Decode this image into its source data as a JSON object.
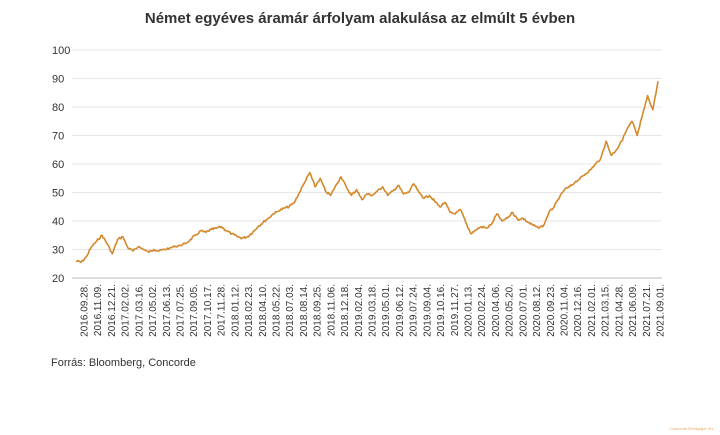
{
  "chart_data": {
    "type": "line",
    "title": "Német egyéves áramár árfolyam alakulása az elmúlt 5 évben",
    "xlabel": "",
    "ylabel": "",
    "ylim": [
      20,
      100
    ],
    "yticks": [
      20,
      30,
      40,
      50,
      60,
      70,
      80,
      90,
      100
    ],
    "grid": "horizontal",
    "line_color": "#d4882a",
    "xticks": [
      "2016.09.28.",
      "2016.11.09.",
      "2016.12.21.",
      "2017.02.02.",
      "2017.03.16.",
      "2017.05.02.",
      "2017.06.13.",
      "2017.07.25.",
      "2017.09.05.",
      "2017.10.17.",
      "2017.11.28.",
      "2018.01.12.",
      "2018.02.23.",
      "2018.04.10.",
      "2018.05.22.",
      "2018.07.03.",
      "2018.08.14.",
      "2018.09.25.",
      "2018.11.06.",
      "2018.12.18.",
      "2019.02.04.",
      "2019.03.18.",
      "2019.05.01.",
      "2019.06.12.",
      "2019.07.24.",
      "2019.09.04.",
      "2019.10.16.",
      "2019.11.27.",
      "2020.01.13.",
      "2020.02.24.",
      "2020.04.06.",
      "2020.05.20.",
      "2020.07.01.",
      "2020.08.12.",
      "2020.09.23.",
      "2020.11.04.",
      "2020.12.16.",
      "2021.02.01.",
      "2021.03.15.",
      "2021.04.28.",
      "2021.06.09.",
      "2021.07.21.",
      "2021.09.01."
    ],
    "series": [
      {
        "values": [
          26.0,
          25.5,
          27.5,
          31.0,
          33.0,
          35.0,
          32.0,
          28.5,
          33.5,
          34.5,
          30.5,
          29.5,
          31.0,
          30.0,
          29.0,
          30.0,
          29.5,
          30.0,
          30.5,
          31.0,
          31.5,
          32.0,
          33.5,
          35.0,
          36.5,
          36.0,
          37.0,
          37.5,
          38.0,
          36.5,
          35.5,
          34.5,
          34.0,
          34.5,
          36.0,
          38.0,
          39.5,
          41.0,
          42.5,
          43.5,
          44.5,
          45.0,
          46.5,
          50.0,
          53.5,
          57.0,
          52.0,
          55.0,
          50.5,
          49.0,
          52.5,
          55.5,
          52.0,
          49.0,
          51.0,
          47.5,
          49.5,
          49.0,
          50.5,
          52.0,
          49.0,
          50.5,
          52.5,
          49.5,
          50.0,
          53.0,
          50.0,
          48.0,
          49.0,
          47.0,
          45.0,
          46.5,
          43.0,
          42.5,
          44.0,
          39.5,
          35.5,
          37.0,
          38.0,
          37.5,
          39.0,
          42.5,
          40.0,
          41.0,
          43.0,
          40.5,
          41.0,
          39.5,
          38.5,
          37.5,
          38.5,
          43.0,
          45.0,
          48.0,
          51.0,
          52.0,
          53.5,
          55.0,
          56.5,
          58.0,
          60.0,
          62.0,
          68.0,
          63.0,
          65.0,
          68.0,
          72.0,
          75.0,
          70.0,
          77.0,
          84.0,
          79.0,
          89.0
        ]
      }
    ]
  },
  "source_note": "Forrás: Bloomberg, Concorde",
  "watermark": "Concorde Értékpapír Zrt."
}
